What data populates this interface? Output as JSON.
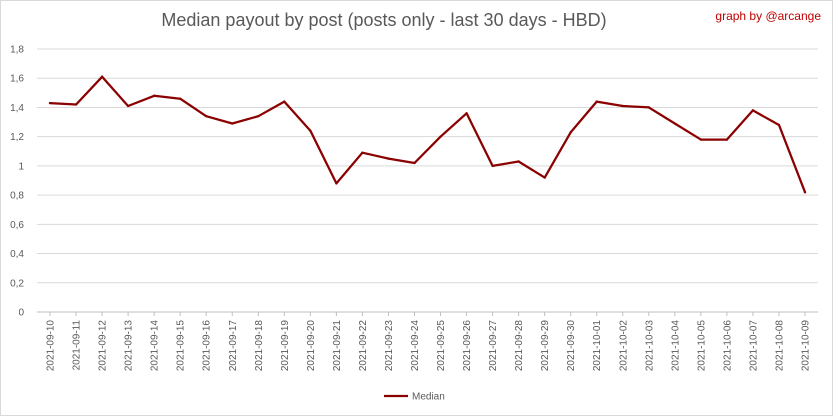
{
  "chart_data": {
    "type": "line",
    "title": "Median payout by post (posts only - last 30 days - HBD)",
    "credit": "graph by @arcange",
    "xlabel": "",
    "ylabel": "",
    "ylim": [
      0,
      1.8
    ],
    "y_ticks": [
      "0",
      "0,2",
      "0,4",
      "0,6",
      "0,8",
      "1",
      "1,2",
      "1,4",
      "1,6",
      "1,8"
    ],
    "grid": true,
    "legend_position": "bottom",
    "categories": [
      "2021-09-10",
      "2021-09-11",
      "2021-09-12",
      "2021-09-13",
      "2021-09-14",
      "2021-09-15",
      "2021-09-16",
      "2021-09-17",
      "2021-09-18",
      "2021-09-19",
      "2021-09-20",
      "2021-09-21",
      "2021-09-22",
      "2021-09-23",
      "2021-09-24",
      "2021-09-25",
      "2021-09-26",
      "2021-09-27",
      "2021-09-28",
      "2021-09-29",
      "2021-09-30",
      "2021-10-01",
      "2021-10-02",
      "2021-10-03",
      "2021-10-04",
      "2021-10-05",
      "2021-10-06",
      "2021-10-07",
      "2021-10-08",
      "2021-10-09"
    ],
    "series": [
      {
        "name": "Median",
        "color": "#8b0000",
        "values": [
          1.43,
          1.42,
          1.61,
          1.41,
          1.48,
          1.46,
          1.34,
          1.29,
          1.34,
          1.44,
          1.24,
          0.88,
          1.09,
          1.05,
          1.02,
          1.2,
          1.36,
          1.0,
          1.03,
          0.92,
          1.23,
          1.44,
          1.41,
          1.4,
          1.29,
          1.18,
          1.18,
          1.38,
          1.28,
          0.82
        ]
      }
    ]
  }
}
